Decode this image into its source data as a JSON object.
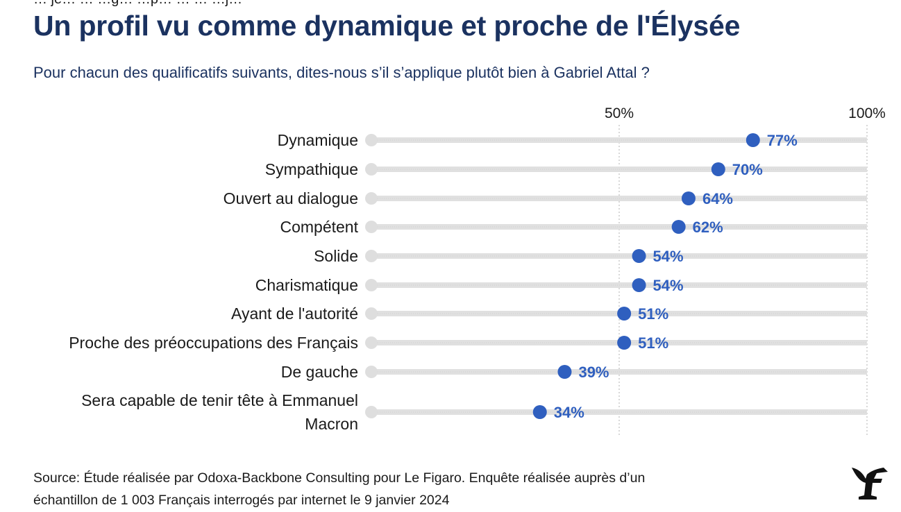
{
  "header": {
    "top_partial": "… je… … …g… …p… … … …j…",
    "title": "Un profil vu comme dynamique et proche de l'Élysée",
    "subtitle": "Pour chacun des qualificatifs suivants, dites-nous s’il s’applique plutôt bien à Gabriel Attal ?"
  },
  "footer": {
    "source_line1": "Source: Étude réalisée par Odoxa-Backbone Consulting pour Le Figaro. Enquête réalisée auprès d’un",
    "source_line2": "échantillon de 1 003 Français interrogés par internet le 9 janvier 2024"
  },
  "logo": {
    "icon": "le-figaro-logo",
    "color": "#111111"
  },
  "colors": {
    "dot": "#2f5fbf",
    "label": "#2f5fbf",
    "track": "#e0e0e0",
    "grid": "#bdbdbd"
  },
  "chart_data": {
    "type": "scatter",
    "subtype": "dot-plot",
    "categories": [
      "Dynamique",
      "Sympathique",
      "Ouvert au dialogue",
      "Compétent",
      "Solide",
      "Charismatique",
      "Ayant de l'autorité",
      "Proche des préoccupations des Français",
      "De gauche",
      "Sera capable de tenir tête à Emmanuel Macron"
    ],
    "values": [
      77,
      70,
      64,
      62,
      54,
      54,
      51,
      51,
      39,
      34
    ],
    "value_labels": [
      "77%",
      "70%",
      "64%",
      "62%",
      "54%",
      "54%",
      "51%",
      "51%",
      "39%",
      "34%"
    ],
    "xlim": [
      0,
      100
    ],
    "x_ticks": [
      50,
      100
    ],
    "x_tick_labels": [
      "50%",
      "100%"
    ],
    "grid": true
  }
}
